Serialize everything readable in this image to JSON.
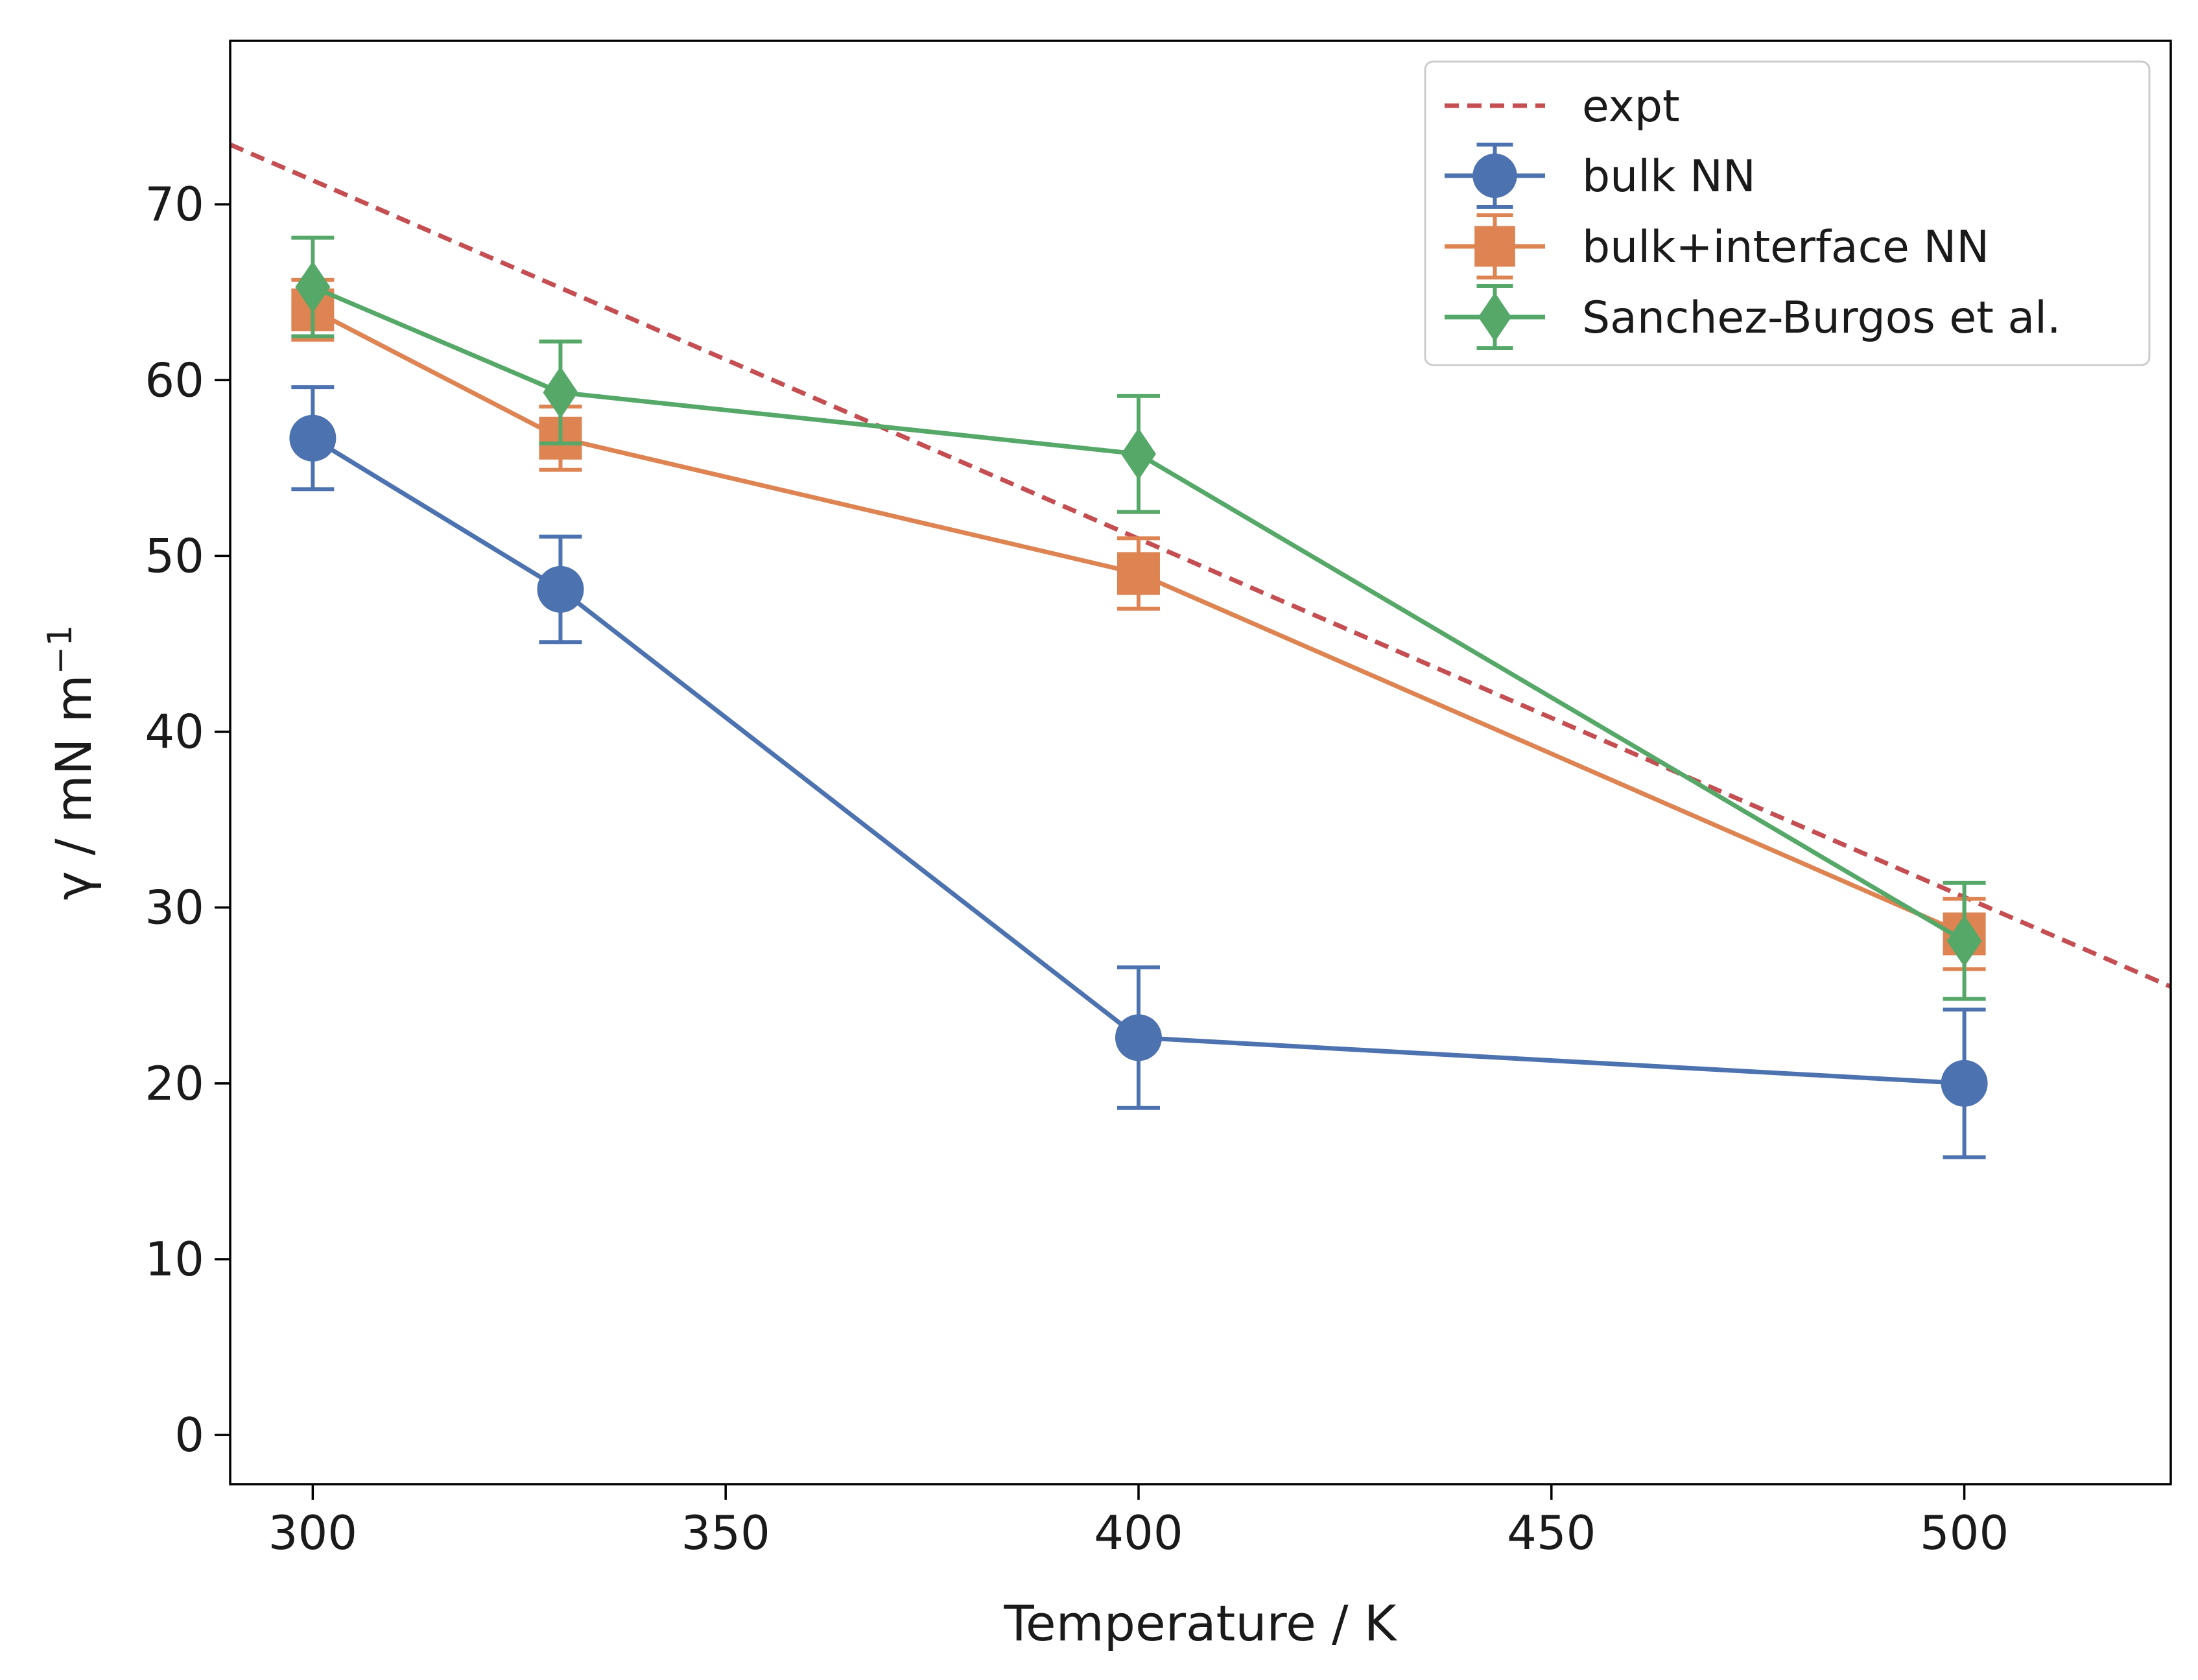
{
  "chart_data": {
    "type": "line",
    "xlabel": "Temperature / K",
    "ylabel_main": "γ / mN m",
    "ylabel_sup": "−1",
    "xlim": [
      290,
      525
    ],
    "ylim": [
      -2.8,
      79.3
    ],
    "xticks": [
      300,
      350,
      400,
      450,
      500
    ],
    "yticks": [
      0,
      10,
      20,
      30,
      40,
      50,
      60,
      70
    ],
    "grid": false,
    "legend_position": "top-right",
    "legend": [
      "expt",
      "bulk NN",
      "bulk+interface NN",
      "Sanchez-Burgos et al."
    ],
    "expt": {
      "name": "expt",
      "color": "#c44e52",
      "style": "dashed",
      "x": [
        290,
        525
      ],
      "y": [
        73.4,
        25.5
      ]
    },
    "series": [
      {
        "name": "bulk NN",
        "color": "#4c72b0",
        "marker": "circle",
        "x": [
          300,
          330,
          400,
          500
        ],
        "y": [
          56.7,
          48.1,
          22.6,
          20.0
        ],
        "err": [
          2.9,
          3.0,
          4.0,
          4.2
        ]
      },
      {
        "name": "bulk+interface NN",
        "color": "#dd8452",
        "marker": "square",
        "x": [
          300,
          330,
          400,
          500
        ],
        "y": [
          64.0,
          56.7,
          49.0,
          28.5
        ],
        "err": [
          1.7,
          1.8,
          2.0,
          2.0
        ]
      },
      {
        "name": "Sanchez-Burgos et al.",
        "color": "#55a868",
        "marker": "diamond",
        "x": [
          300,
          330,
          400,
          500
        ],
        "y": [
          65.3,
          59.3,
          55.8,
          28.1
        ],
        "err": [
          2.8,
          2.9,
          3.3,
          3.3
        ]
      }
    ]
  }
}
